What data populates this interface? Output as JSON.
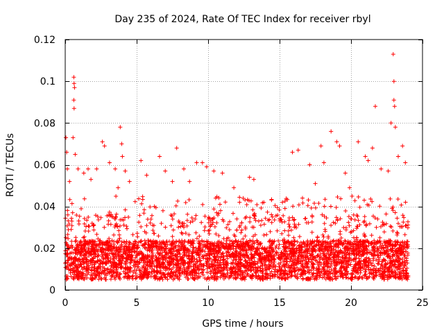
{
  "chart_data": {
    "type": "scatter",
    "title": "Day 235 of 2024, Rate Of TEC Index for receiver rbyl",
    "xlabel": "GPS time / hours",
    "ylabel": "ROTI / TECUs",
    "xlim": [
      0,
      25
    ],
    "ylim": [
      0,
      0.12
    ],
    "xticks": [
      0,
      5,
      10,
      15,
      20,
      25
    ],
    "xtick_labels": [
      "0",
      "5",
      "10",
      "15",
      "20",
      "25"
    ],
    "yticks": [
      0,
      0.02,
      0.04,
      0.06,
      0.08,
      0.1,
      0.12
    ],
    "ytick_labels": [
      "0",
      "0.02",
      "0.04",
      "0.06",
      "0.08",
      "0.1",
      "0.12"
    ],
    "grid": true,
    "marker": "+",
    "color": "#ff0000",
    "series": [
      {
        "name": "ROTI",
        "x_range": [
          0,
          24
        ],
        "typical_band": [
          0.005,
          0.03
        ],
        "points": [
          [
            0.05,
            0.073
          ],
          [
            0.1,
            0.066
          ],
          [
            0.15,
            0.058
          ],
          [
            0.3,
            0.052
          ],
          [
            0.6,
            0.102
          ],
          [
            0.62,
            0.099
          ],
          [
            0.65,
            0.097
          ],
          [
            0.6,
            0.091
          ],
          [
            0.62,
            0.087
          ],
          [
            0.55,
            0.073
          ],
          [
            0.7,
            0.065
          ],
          [
            0.9,
            0.058
          ],
          [
            1.3,
            0.056
          ],
          [
            1.6,
            0.058
          ],
          [
            1.8,
            0.053
          ],
          [
            2.2,
            0.058
          ],
          [
            2.6,
            0.071
          ],
          [
            2.75,
            0.069
          ],
          [
            3.1,
            0.061
          ],
          [
            3.5,
            0.058
          ],
          [
            3.7,
            0.049
          ],
          [
            3.85,
            0.078
          ],
          [
            3.95,
            0.07
          ],
          [
            4.0,
            0.064
          ],
          [
            4.2,
            0.057
          ],
          [
            4.5,
            0.052
          ],
          [
            5.3,
            0.062
          ],
          [
            5.7,
            0.055
          ],
          [
            6.6,
            0.064
          ],
          [
            7.0,
            0.057
          ],
          [
            7.5,
            0.052
          ],
          [
            7.8,
            0.068
          ],
          [
            8.3,
            0.058
          ],
          [
            8.7,
            0.052
          ],
          [
            9.2,
            0.061
          ],
          [
            9.6,
            0.061
          ],
          [
            9.9,
            0.059
          ],
          [
            10.4,
            0.057
          ],
          [
            11.0,
            0.056
          ],
          [
            11.8,
            0.049
          ],
          [
            12.2,
            0.042
          ],
          [
            12.9,
            0.054
          ],
          [
            13.2,
            0.053
          ],
          [
            13.9,
            0.042
          ],
          [
            14.5,
            0.035
          ],
          [
            15.2,
            0.042
          ],
          [
            15.9,
            0.066
          ],
          [
            16.3,
            0.067
          ],
          [
            17.1,
            0.06
          ],
          [
            17.5,
            0.051
          ],
          [
            17.9,
            0.069
          ],
          [
            18.1,
            0.061
          ],
          [
            18.6,
            0.076
          ],
          [
            19.0,
            0.071
          ],
          [
            19.2,
            0.069
          ],
          [
            19.6,
            0.056
          ],
          [
            19.9,
            0.049
          ],
          [
            20.5,
            0.071
          ],
          [
            21.0,
            0.064
          ],
          [
            21.2,
            0.062
          ],
          [
            21.5,
            0.068
          ],
          [
            21.7,
            0.088
          ],
          [
            22.1,
            0.058
          ],
          [
            22.6,
            0.057
          ],
          [
            22.8,
            0.08
          ],
          [
            22.95,
            0.113
          ],
          [
            23.0,
            0.1
          ],
          [
            23.0,
            0.091
          ],
          [
            23.05,
            0.088
          ],
          [
            23.1,
            0.078
          ],
          [
            23.3,
            0.064
          ],
          [
            23.6,
            0.069
          ],
          [
            23.8,
            0.061
          ]
        ]
      }
    ]
  }
}
